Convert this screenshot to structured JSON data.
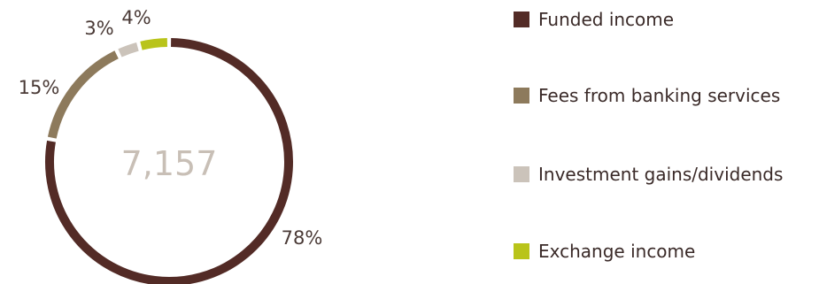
{
  "chart_data": {
    "type": "donut",
    "total_label": "7,157",
    "series": [
      {
        "name": "Funded income",
        "value": 78,
        "label": "78%",
        "color": "#532b26"
      },
      {
        "name": "Fees from banking services",
        "value": 15,
        "label": "15%",
        "color": "#8d7a5c"
      },
      {
        "name": "Investment gains/dividends",
        "value": 3,
        "label": "3%",
        "color": "#cbc3ba"
      },
      {
        "name": "Exchange income",
        "value": 4,
        "label": "4%",
        "color": "#b9c41a"
      }
    ],
    "legend": "right"
  }
}
